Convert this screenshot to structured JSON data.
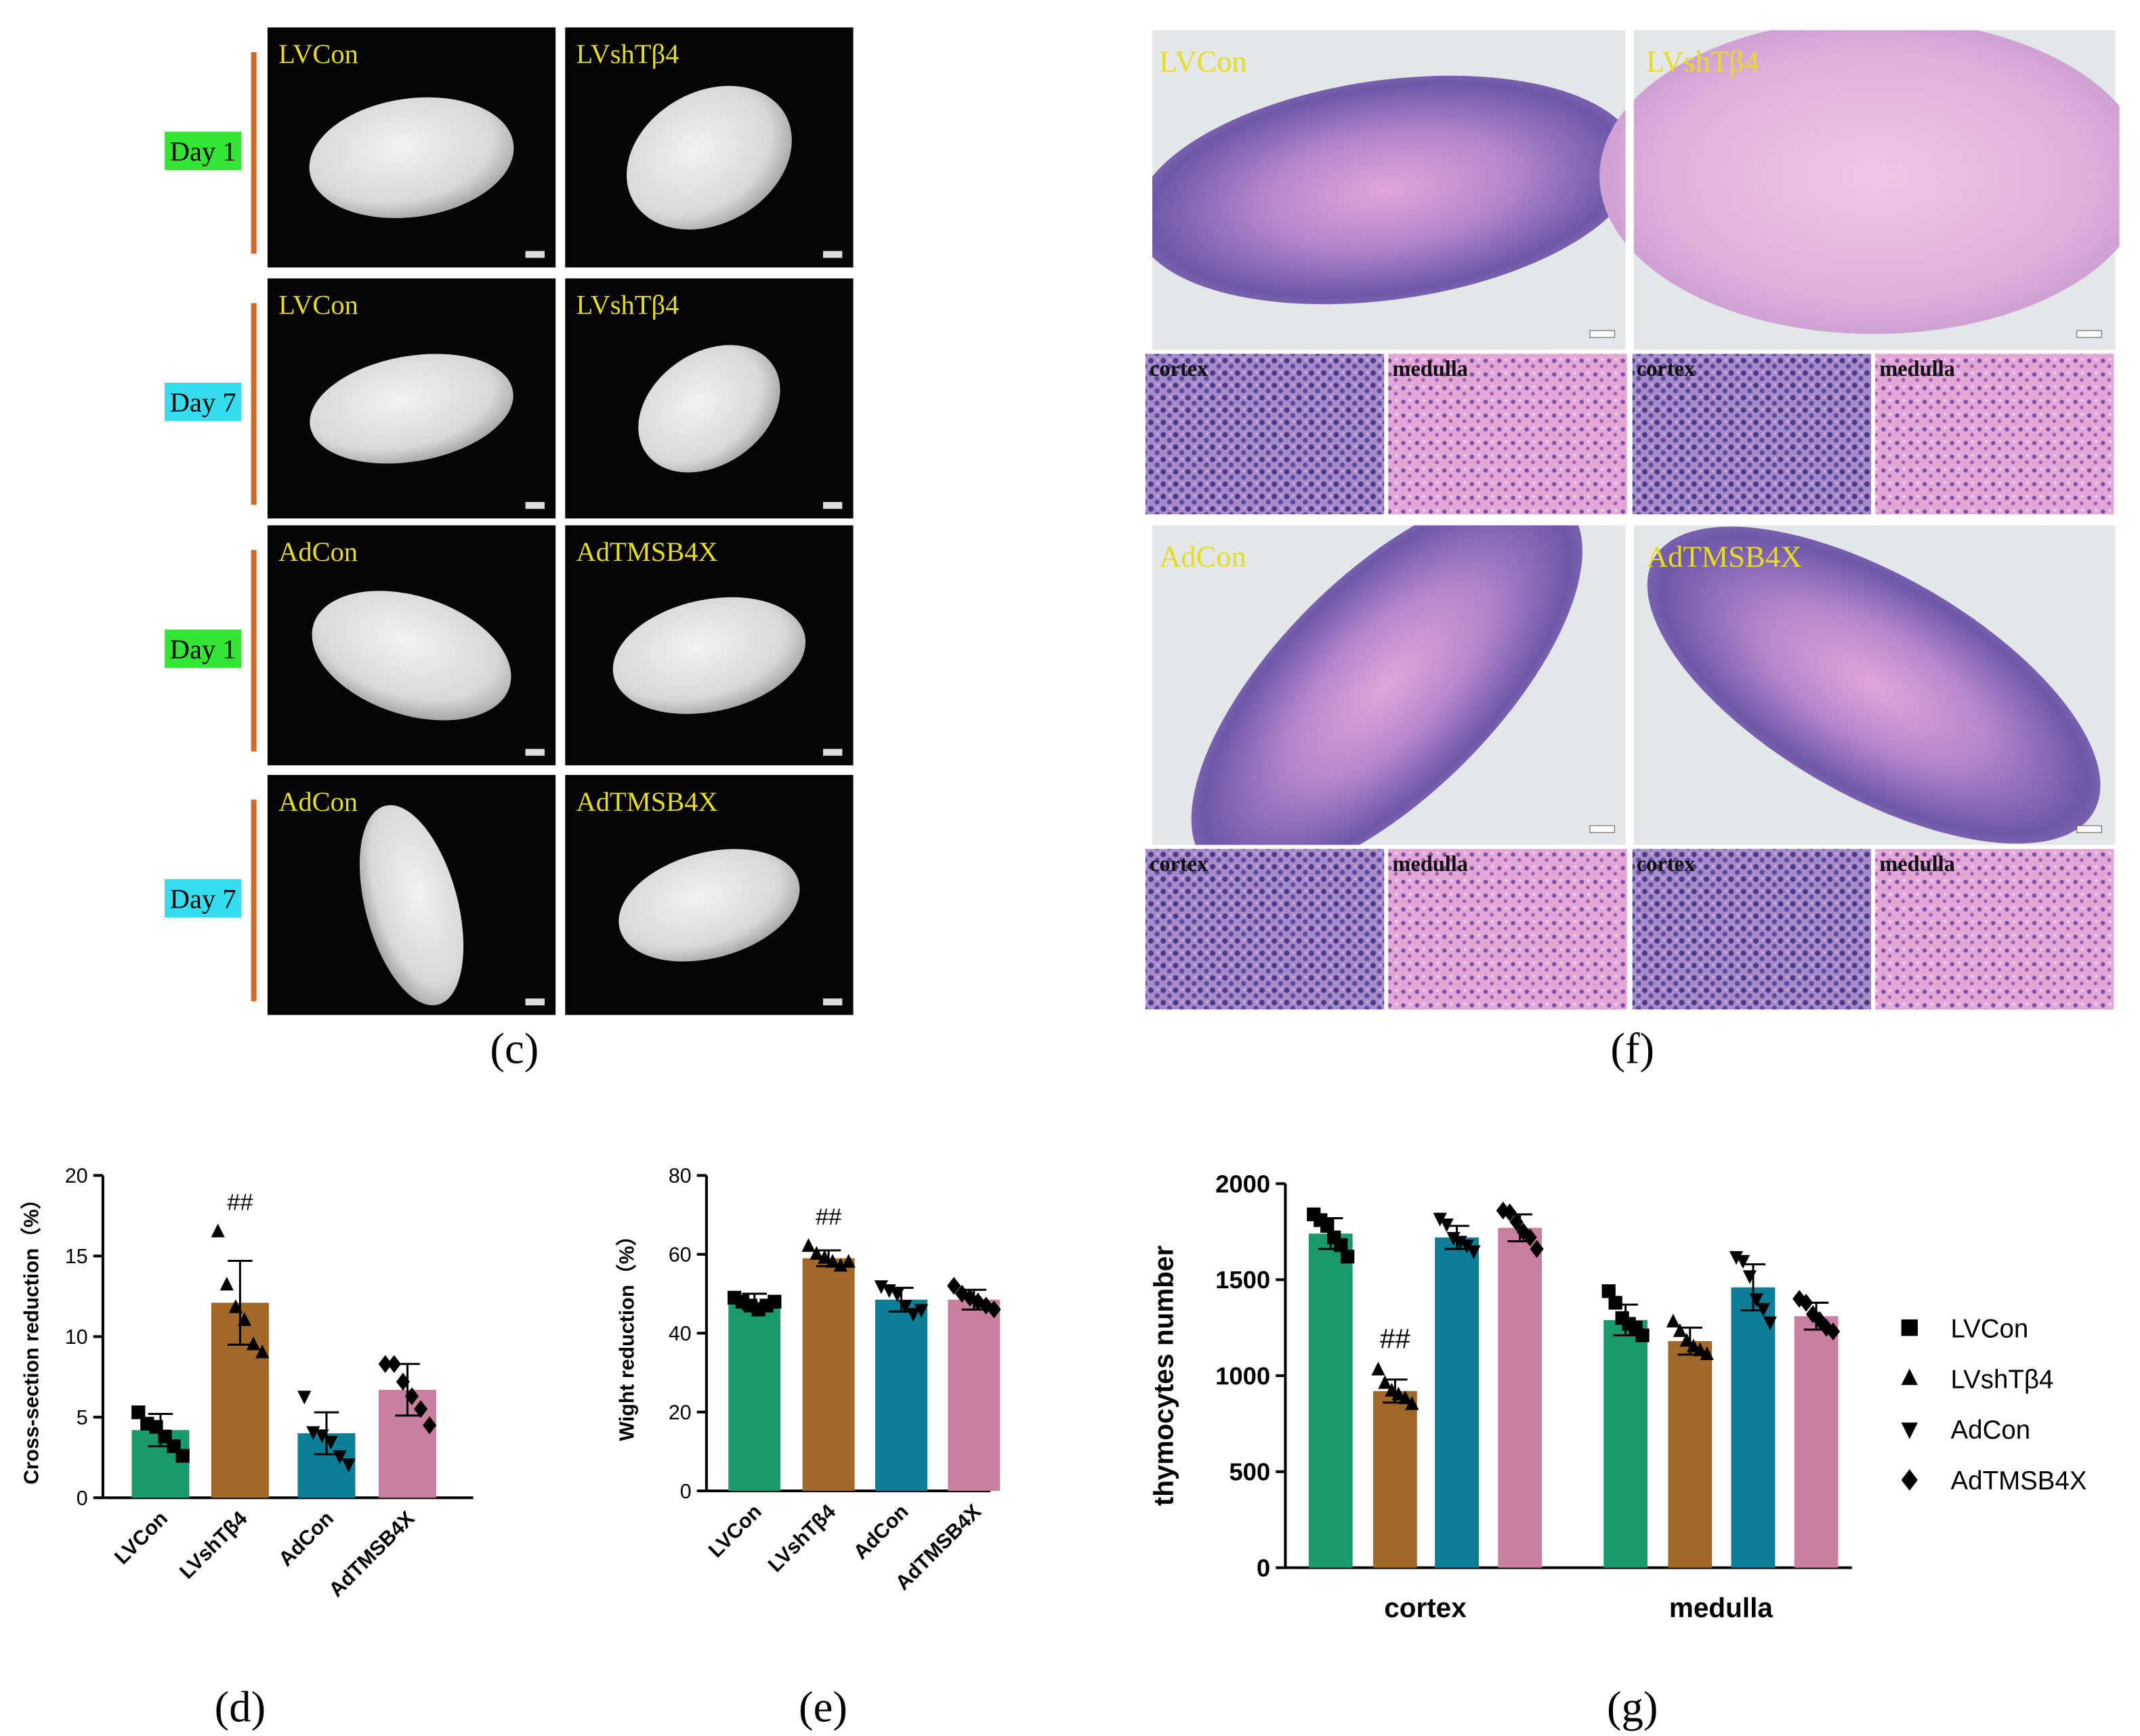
{
  "panel_c": {
    "label": "(c)",
    "rows": [
      {
        "day": "Day 1",
        "color": "#33e633",
        "images": [
          "LVCon",
          "LVshTβ4"
        ]
      },
      {
        "day": "Day 7",
        "color": "#33ddee",
        "images": [
          "LVCon",
          "LVshTβ4"
        ]
      },
      {
        "day": "Day 1",
        "color": "#33e633",
        "images": [
          "AdCon",
          "AdTMSB4X"
        ]
      },
      {
        "day": "Day 7",
        "color": "#33ddee",
        "images": [
          "AdCon",
          "AdTMSB4X"
        ]
      }
    ]
  },
  "panel_f": {
    "label": "(f)",
    "rows": [
      {
        "images": [
          "LVCon",
          "LVshTβ4"
        ],
        "insets": [
          "cortex",
          "medulla",
          "cortex",
          "medulla"
        ]
      },
      {
        "images": [
          "AdCon",
          "AdTMSB4X"
        ],
        "insets": [
          "cortex",
          "medulla",
          "cortex",
          "medulla"
        ]
      }
    ]
  },
  "chart_data": [
    {
      "type": "bar",
      "label": "(d)",
      "y_label": "Cross-section reduction（%）",
      "categories": [
        "LVCon",
        "LVshTβ4",
        "AdCon",
        "AdTMSB4X"
      ],
      "values": [
        4.2,
        12.1,
        4.0,
        6.7
      ],
      "errors": [
        1.0,
        2.6,
        1.3,
        1.6
      ],
      "points": [
        [
          5.3,
          4.6,
          4.4,
          3.8,
          3.2,
          2.6
        ],
        [
          16.5,
          13.2,
          11.8,
          11.0,
          9.5,
          9.0
        ],
        [
          6.3,
          4.1,
          3.9,
          3.5,
          2.6,
          2.1
        ],
        [
          8.3,
          8.3,
          7.2,
          6.3,
          5.5,
          4.5
        ]
      ],
      "annotations": [
        null,
        "##",
        null,
        null
      ],
      "colors": [
        "#1a9a6c",
        "#a0692a",
        "#0e7e96",
        "#c97f9e"
      ],
      "markers": [
        "square",
        "triangle",
        "triangle-down",
        "diamond"
      ],
      "ylim": [
        0,
        20
      ],
      "yticks": [
        0,
        5,
        10,
        15,
        20
      ]
    },
    {
      "type": "bar",
      "label": "(e)",
      "y_label": "Wight reduction（%）",
      "categories": [
        "LVCon",
        "LVshTβ4",
        "AdCon",
        "AdTMSB4X"
      ],
      "values": [
        48,
        59,
        48.5,
        48.5
      ],
      "errors": [
        2,
        2,
        3,
        2.5
      ],
      "points": [
        [
          49,
          48,
          47,
          46,
          47,
          48
        ],
        [
          62,
          60,
          59,
          58,
          57,
          58
        ],
        [
          52,
          51,
          50,
          47,
          45,
          46
        ],
        [
          52,
          50,
          49,
          48,
          47,
          46
        ]
      ],
      "annotations": [
        null,
        "##",
        null,
        null
      ],
      "colors": [
        "#1a9a6c",
        "#a0692a",
        "#0e7e96",
        "#c97f9e"
      ],
      "markers": [
        "square",
        "triangle",
        "triangle-down",
        "diamond"
      ],
      "ylim": [
        0,
        80
      ],
      "yticks": [
        0,
        20,
        40,
        60,
        80
      ]
    },
    {
      "type": "bar",
      "label": "(g)",
      "y_label": "thymocytes number",
      "categories": [
        "cortex",
        "medulla"
      ],
      "series": [
        {
          "name": "LVCon",
          "color": "#1a9a6c",
          "marker": "square",
          "values": [
            1740,
            1290
          ],
          "errors": [
            80,
            80
          ],
          "points": [
            [
              1840,
              1810,
              1780,
              1720,
              1680,
              1620
            ],
            [
              1440,
              1380,
              1300,
              1270,
              1250,
              1210
            ]
          ],
          "annotations": [
            null,
            null
          ]
        },
        {
          "name": "LVshTβ4",
          "color": "#a0692a",
          "marker": "triangle",
          "values": [
            920,
            1180
          ],
          "errors": [
            60,
            70
          ],
          "points": [
            [
              1030,
              960,
              920,
              900,
              880,
              850
            ],
            [
              1280,
              1230,
              1180,
              1150,
              1130,
              1110
            ]
          ],
          "annotations": [
            "##",
            null
          ]
        },
        {
          "name": "AdCon",
          "color": "#0e7e96",
          "marker": "triangle-down",
          "values": [
            1720,
            1460
          ],
          "errors": [
            60,
            120
          ],
          "points": [
            [
              1820,
              1790,
              1720,
              1700,
              1680,
              1650
            ],
            [
              1620,
              1600,
              1520,
              1400,
              1350,
              1280
            ]
          ],
          "annotations": [
            null,
            null
          ]
        },
        {
          "name": "AdTMSB4X",
          "color": "#c97f9e",
          "marker": "diamond",
          "values": [
            1770,
            1310
          ],
          "errors": [
            70,
            70
          ],
          "points": [
            [
              1860,
              1850,
              1800,
              1750,
              1720,
              1660
            ],
            [
              1400,
              1380,
              1320,
              1290,
              1250,
              1230
            ]
          ],
          "annotations": [
            null,
            null
          ]
        }
      ],
      "ylim": [
        0,
        2000
      ],
      "yticks": [
        0,
        500,
        1000,
        1500,
        2000
      ],
      "legend": "right"
    }
  ]
}
